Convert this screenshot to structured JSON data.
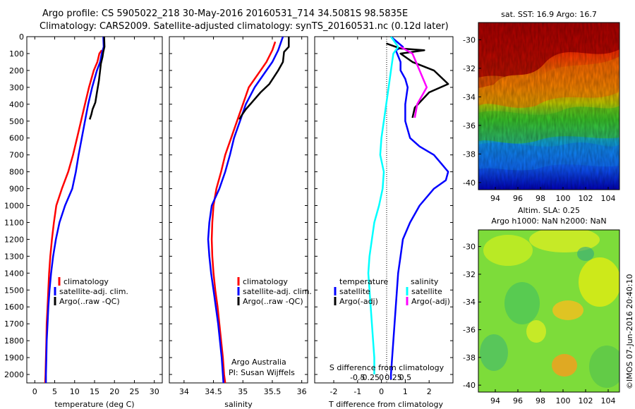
{
  "header": {
    "line1": "Argo profile: CS 5905022_218 30-May-2016 20160531_714 34.5081S 98.5835E",
    "line2": "Climatology: CARS2009. Satellite-adjusted climatology: synTS_20160531.nc (0.12d later)"
  },
  "colors": {
    "climatology": "#ff0000",
    "satellite": "#0000ff",
    "argo": "#000000",
    "sal_satellite": "#00ffff",
    "sal_argo": "#ff00ff"
  },
  "chart_data": [
    {
      "type": "line",
      "name": "temperature-panel",
      "xlabel": "temperature (deg C)",
      "xlim": [
        -2,
        32
      ],
      "ylim": [
        2050,
        0
      ],
      "xticks": [
        0,
        5,
        10,
        15,
        20,
        25,
        30
      ],
      "yticks": [
        0,
        100,
        200,
        300,
        400,
        500,
        600,
        700,
        800,
        900,
        1000,
        1100,
        1200,
        1300,
        1400,
        1500,
        1600,
        1700,
        1800,
        1900,
        2000
      ],
      "legend": [
        "climatology",
        "satellite-adj. clim.",
        "Argo(..raw -QC)"
      ],
      "series": [
        {
          "name": "climatology",
          "color": "#ff0000",
          "points": [
            [
              16.8,
              80
            ],
            [
              16.2,
              100
            ],
            [
              15.7,
              150
            ],
            [
              14.8,
              200
            ],
            [
              13.6,
              300
            ],
            [
              12.6,
              400
            ],
            [
              11.6,
              500
            ],
            [
              10.6,
              600
            ],
            [
              9.6,
              700
            ],
            [
              8.4,
              800
            ],
            [
              6.8,
              900
            ],
            [
              5.4,
              1000
            ],
            [
              4.8,
              1100
            ],
            [
              4.3,
              1200
            ],
            [
              3.9,
              1300
            ],
            [
              3.6,
              1400
            ],
            [
              3.4,
              1500
            ],
            [
              3.2,
              1600
            ],
            [
              3.0,
              1700
            ],
            [
              2.9,
              1800
            ],
            [
              2.8,
              1900
            ],
            [
              2.7,
              2000
            ],
            [
              2.6,
              2050
            ]
          ]
        },
        {
          "name": "satellite-adj. clim.",
          "color": "#0000ff",
          "points": [
            [
              17.2,
              0
            ],
            [
              17.3,
              60
            ],
            [
              16.8,
              100
            ],
            [
              16.4,
              150
            ],
            [
              15.6,
              200
            ],
            [
              14.4,
              300
            ],
            [
              13.4,
              400
            ],
            [
              12.6,
              500
            ],
            [
              11.8,
              600
            ],
            [
              11.0,
              700
            ],
            [
              10.3,
              800
            ],
            [
              9.4,
              900
            ],
            [
              7.6,
              1000
            ],
            [
              6.2,
              1100
            ],
            [
              5.3,
              1200
            ],
            [
              4.6,
              1300
            ],
            [
              4.1,
              1400
            ],
            [
              3.7,
              1500
            ],
            [
              3.4,
              1600
            ],
            [
              3.2,
              1700
            ],
            [
              3.0,
              1800
            ],
            [
              2.9,
              1900
            ],
            [
              2.8,
              2000
            ],
            [
              2.8,
              2050
            ]
          ]
        },
        {
          "name": "Argo(..raw -QC)",
          "color": "#000000",
          "points": [
            [
              17.4,
              0
            ],
            [
              17.5,
              60
            ],
            [
              17.2,
              90
            ],
            [
              17.0,
              120
            ],
            [
              16.6,
              160
            ],
            [
              16.4,
              200
            ],
            [
              16.1,
              260
            ],
            [
              15.6,
              330
            ],
            [
              15.2,
              390
            ],
            [
              14.5,
              430
            ],
            [
              14.2,
              460
            ],
            [
              13.8,
              490
            ]
          ]
        }
      ]
    },
    {
      "type": "line",
      "name": "salinity-panel",
      "xlabel": "salinity",
      "xlim": [
        33.75,
        36.1
      ],
      "ylim": [
        2050,
        0
      ],
      "xticks": [
        34,
        34.5,
        35,
        35.5,
        36
      ],
      "legend": [
        "climatology",
        "satellite-adj. clim.",
        "Argo(..raw -QC)"
      ],
      "annotation": [
        "Argo Australia",
        "PI: Susan Wijffels"
      ],
      "series": [
        {
          "name": "climatology",
          "color": "#ff0000",
          "points": [
            [
              35.55,
              30
            ],
            [
              35.5,
              80
            ],
            [
              35.4,
              150
            ],
            [
              35.3,
              200
            ],
            [
              35.1,
              300
            ],
            [
              35.0,
              400
            ],
            [
              34.9,
              500
            ],
            [
              34.8,
              600
            ],
            [
              34.7,
              700
            ],
            [
              34.63,
              800
            ],
            [
              34.55,
              900
            ],
            [
              34.5,
              1000
            ],
            [
              34.48,
              1100
            ],
            [
              34.47,
              1200
            ],
            [
              34.48,
              1300
            ],
            [
              34.5,
              1400
            ],
            [
              34.53,
              1500
            ],
            [
              34.57,
              1600
            ],
            [
              34.6,
              1700
            ],
            [
              34.63,
              1800
            ],
            [
              34.66,
              1900
            ],
            [
              34.68,
              2000
            ],
            [
              34.7,
              2050
            ]
          ]
        },
        {
          "name": "satellite-adj. clim.",
          "color": "#0000ff",
          "points": [
            [
              35.68,
              0
            ],
            [
              35.6,
              80
            ],
            [
              35.5,
              150
            ],
            [
              35.4,
              200
            ],
            [
              35.2,
              300
            ],
            [
              35.05,
              400
            ],
            [
              34.95,
              500
            ],
            [
              34.85,
              600
            ],
            [
              34.78,
              700
            ],
            [
              34.7,
              800
            ],
            [
              34.6,
              900
            ],
            [
              34.47,
              1000
            ],
            [
              34.43,
              1100
            ],
            [
              34.41,
              1200
            ],
            [
              34.43,
              1300
            ],
            [
              34.46,
              1400
            ],
            [
              34.5,
              1500
            ],
            [
              34.54,
              1600
            ],
            [
              34.58,
              1700
            ],
            [
              34.61,
              1800
            ],
            [
              34.64,
              1900
            ],
            [
              34.66,
              2000
            ],
            [
              34.67,
              2050
            ]
          ]
        },
        {
          "name": "Argo(..raw -QC)",
          "color": "#000000",
          "points": [
            [
              35.78,
              0
            ],
            [
              35.78,
              60
            ],
            [
              35.7,
              90
            ],
            [
              35.68,
              150
            ],
            [
              35.6,
              200
            ],
            [
              35.45,
              280
            ],
            [
              35.3,
              330
            ],
            [
              35.15,
              390
            ],
            [
              35.05,
              430
            ],
            [
              34.97,
              470
            ],
            [
              34.94,
              490
            ]
          ]
        }
      ]
    },
    {
      "type": "line",
      "name": "difference-panel",
      "xlabel": "T difference from climatology",
      "xlabel2": "S difference from climatology",
      "xlim": [
        -2.8,
        3.0
      ],
      "ylim": [
        2050,
        0
      ],
      "xticks": [
        -2,
        -1,
        0,
        1,
        2
      ],
      "xticks_s": [
        -0.5,
        -0.25,
        0,
        0.25,
        0.5
      ],
      "xticks_s_labels": [
        "-0.5",
        "-0.25",
        "0",
        "0.25",
        "0.5"
      ],
      "legend_headers": [
        "temperature",
        "salinity"
      ],
      "legend": [
        "satellite",
        "Argo(-adj)",
        "satellite",
        "Argo(-adj)"
      ],
      "series": [
        {
          "name": "temperature satellite",
          "color": "#0000ff",
          "points": [
            [
              0.4,
              0
            ],
            [
              0.9,
              60
            ],
            [
              0.6,
              80
            ],
            [
              0.8,
              150
            ],
            [
              0.8,
              200
            ],
            [
              1.0,
              250
            ],
            [
              1.1,
              300
            ],
            [
              1.0,
              400
            ],
            [
              1.0,
              500
            ],
            [
              1.2,
              600
            ],
            [
              1.6,
              650
            ],
            [
              2.2,
              700
            ],
            [
              2.5,
              750
            ],
            [
              2.8,
              800
            ],
            [
              2.7,
              850
            ],
            [
              2.2,
              900
            ],
            [
              1.6,
              1000
            ],
            [
              1.2,
              1100
            ],
            [
              0.9,
              1200
            ],
            [
              0.8,
              1300
            ],
            [
              0.7,
              1400
            ],
            [
              0.6,
              1600
            ],
            [
              0.5,
              1800
            ],
            [
              0.4,
              2000
            ],
            [
              0.4,
              2030
            ]
          ]
        },
        {
          "name": "temperature Argo(-adj)",
          "color": "#000000",
          "points": [
            [
              0.2,
              40
            ],
            [
              0.8,
              70
            ],
            [
              1.8,
              80
            ],
            [
              0.8,
              100
            ],
            [
              1.3,
              150
            ],
            [
              2.2,
              200
            ],
            [
              2.8,
              280
            ],
            [
              2.0,
              330
            ],
            [
              1.4,
              420
            ],
            [
              1.3,
              480
            ]
          ]
        },
        {
          "name": "salinity satellite",
          "color": "#00ffff",
          "points": [
            [
              0.4,
              0
            ],
            [
              0.7,
              60
            ],
            [
              0.5,
              100
            ],
            [
              0.4,
              200
            ],
            [
              0.3,
              300
            ],
            [
              0.2,
              400
            ],
            [
              0.1,
              500
            ],
            [
              0.0,
              600
            ],
            [
              -0.05,
              700
            ],
            [
              0.1,
              800
            ],
            [
              0.05,
              900
            ],
            [
              -0.1,
              1000
            ],
            [
              -0.3,
              1100
            ],
            [
              -0.4,
              1200
            ],
            [
              -0.5,
              1300
            ],
            [
              -0.55,
              1400
            ],
            [
              -0.5,
              1500
            ],
            [
              -0.45,
              1600
            ],
            [
              -0.4,
              1700
            ],
            [
              -0.35,
              1800
            ],
            [
              -0.3,
              1900
            ],
            [
              -0.3,
              2000
            ]
          ]
        },
        {
          "name": "salinity Argo(-adj)",
          "color": "#ff00ff",
          "points": [
            [
              0.8,
              60
            ],
            [
              1.3,
              100
            ],
            [
              1.6,
              200
            ],
            [
              1.9,
              300
            ],
            [
              1.5,
              400
            ],
            [
              1.4,
              480
            ]
          ]
        }
      ]
    },
    {
      "type": "heatmap",
      "name": "sst-map",
      "title": "sat. SST: 16.9 Argo: 16.7",
      "xticks": [
        94,
        96,
        98,
        100,
        102,
        104
      ],
      "yticks": [
        -30,
        -32,
        -34,
        -36,
        -38,
        -40
      ],
      "xlim": [
        92.5,
        105
      ],
      "ylim": [
        -40.5,
        -28.8
      ],
      "colormap": "jet"
    },
    {
      "type": "heatmap",
      "name": "sla-map",
      "title": "Altim. SLA: 0.25",
      "subtitle": "Argo h1000: NaN h2000: NaN",
      "xticks": [
        94,
        96,
        98,
        100,
        102,
        104
      ],
      "yticks": [
        -30,
        -32,
        -34,
        -36,
        -38,
        -40
      ],
      "xlim": [
        92.5,
        105
      ],
      "ylim": [
        -40.5,
        -28.8
      ],
      "colormap": "jet"
    }
  ],
  "footer": {
    "stamp": "©IMOS 07-Jun-2016 20:40:10"
  }
}
